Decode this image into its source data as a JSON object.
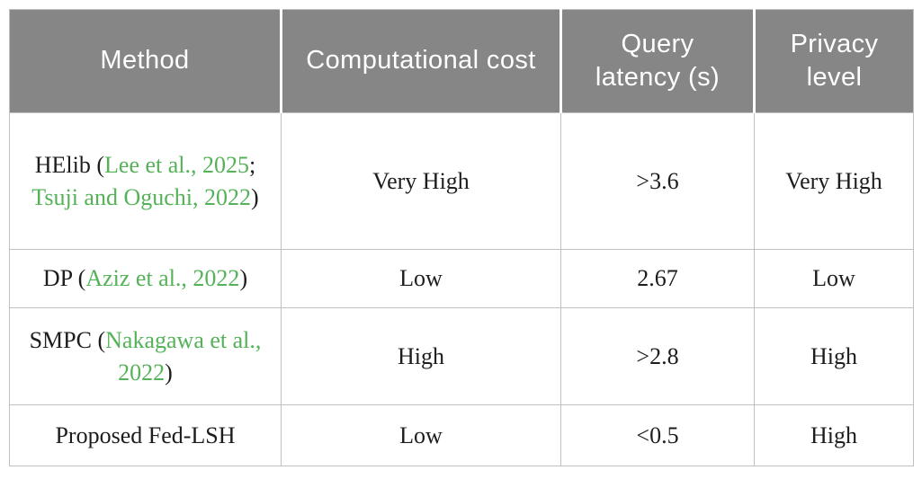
{
  "colors": {
    "header_bg": "#868686",
    "header_text": "#ffffff",
    "body_text": "#1d1d1d",
    "citation_green": "#54b258",
    "border": "#c0c0c0"
  },
  "table": {
    "headers": [
      {
        "label": "Method"
      },
      {
        "label": "Computational cost"
      },
      {
        "label": "Query latency (s)"
      },
      {
        "label": "Privacy level"
      }
    ],
    "rows": [
      {
        "method_parts": [
          {
            "text": "HElib (",
            "link": false
          },
          {
            "text": "Lee et al., 2025",
            "link": true
          },
          {
            "text": "; ",
            "link": false
          },
          {
            "text": "Tsuji and Oguchi, 2022",
            "link": true
          },
          {
            "text": ")",
            "link": false
          }
        ],
        "computational_cost": "Very High",
        "query_latency": ">3.6",
        "privacy_level": "Very High"
      },
      {
        "method_parts": [
          {
            "text": "DP (",
            "link": false
          },
          {
            "text": "Aziz et al., 2022",
            "link": true
          },
          {
            "text": ")",
            "link": false
          }
        ],
        "computational_cost": "Low",
        "query_latency": "2.67",
        "privacy_level": "Low"
      },
      {
        "method_parts": [
          {
            "text": "SMPC (",
            "link": false
          },
          {
            "text": "Nakagawa et al., 2022",
            "link": true
          },
          {
            "text": ")",
            "link": false
          }
        ],
        "computational_cost": "High",
        "query_latency": ">2.8",
        "privacy_level": "High"
      },
      {
        "method_parts": [
          {
            "text": "Proposed Fed-LSH",
            "link": false
          }
        ],
        "computational_cost": "Low",
        "query_latency": "<0.5",
        "privacy_level": "High"
      }
    ]
  }
}
